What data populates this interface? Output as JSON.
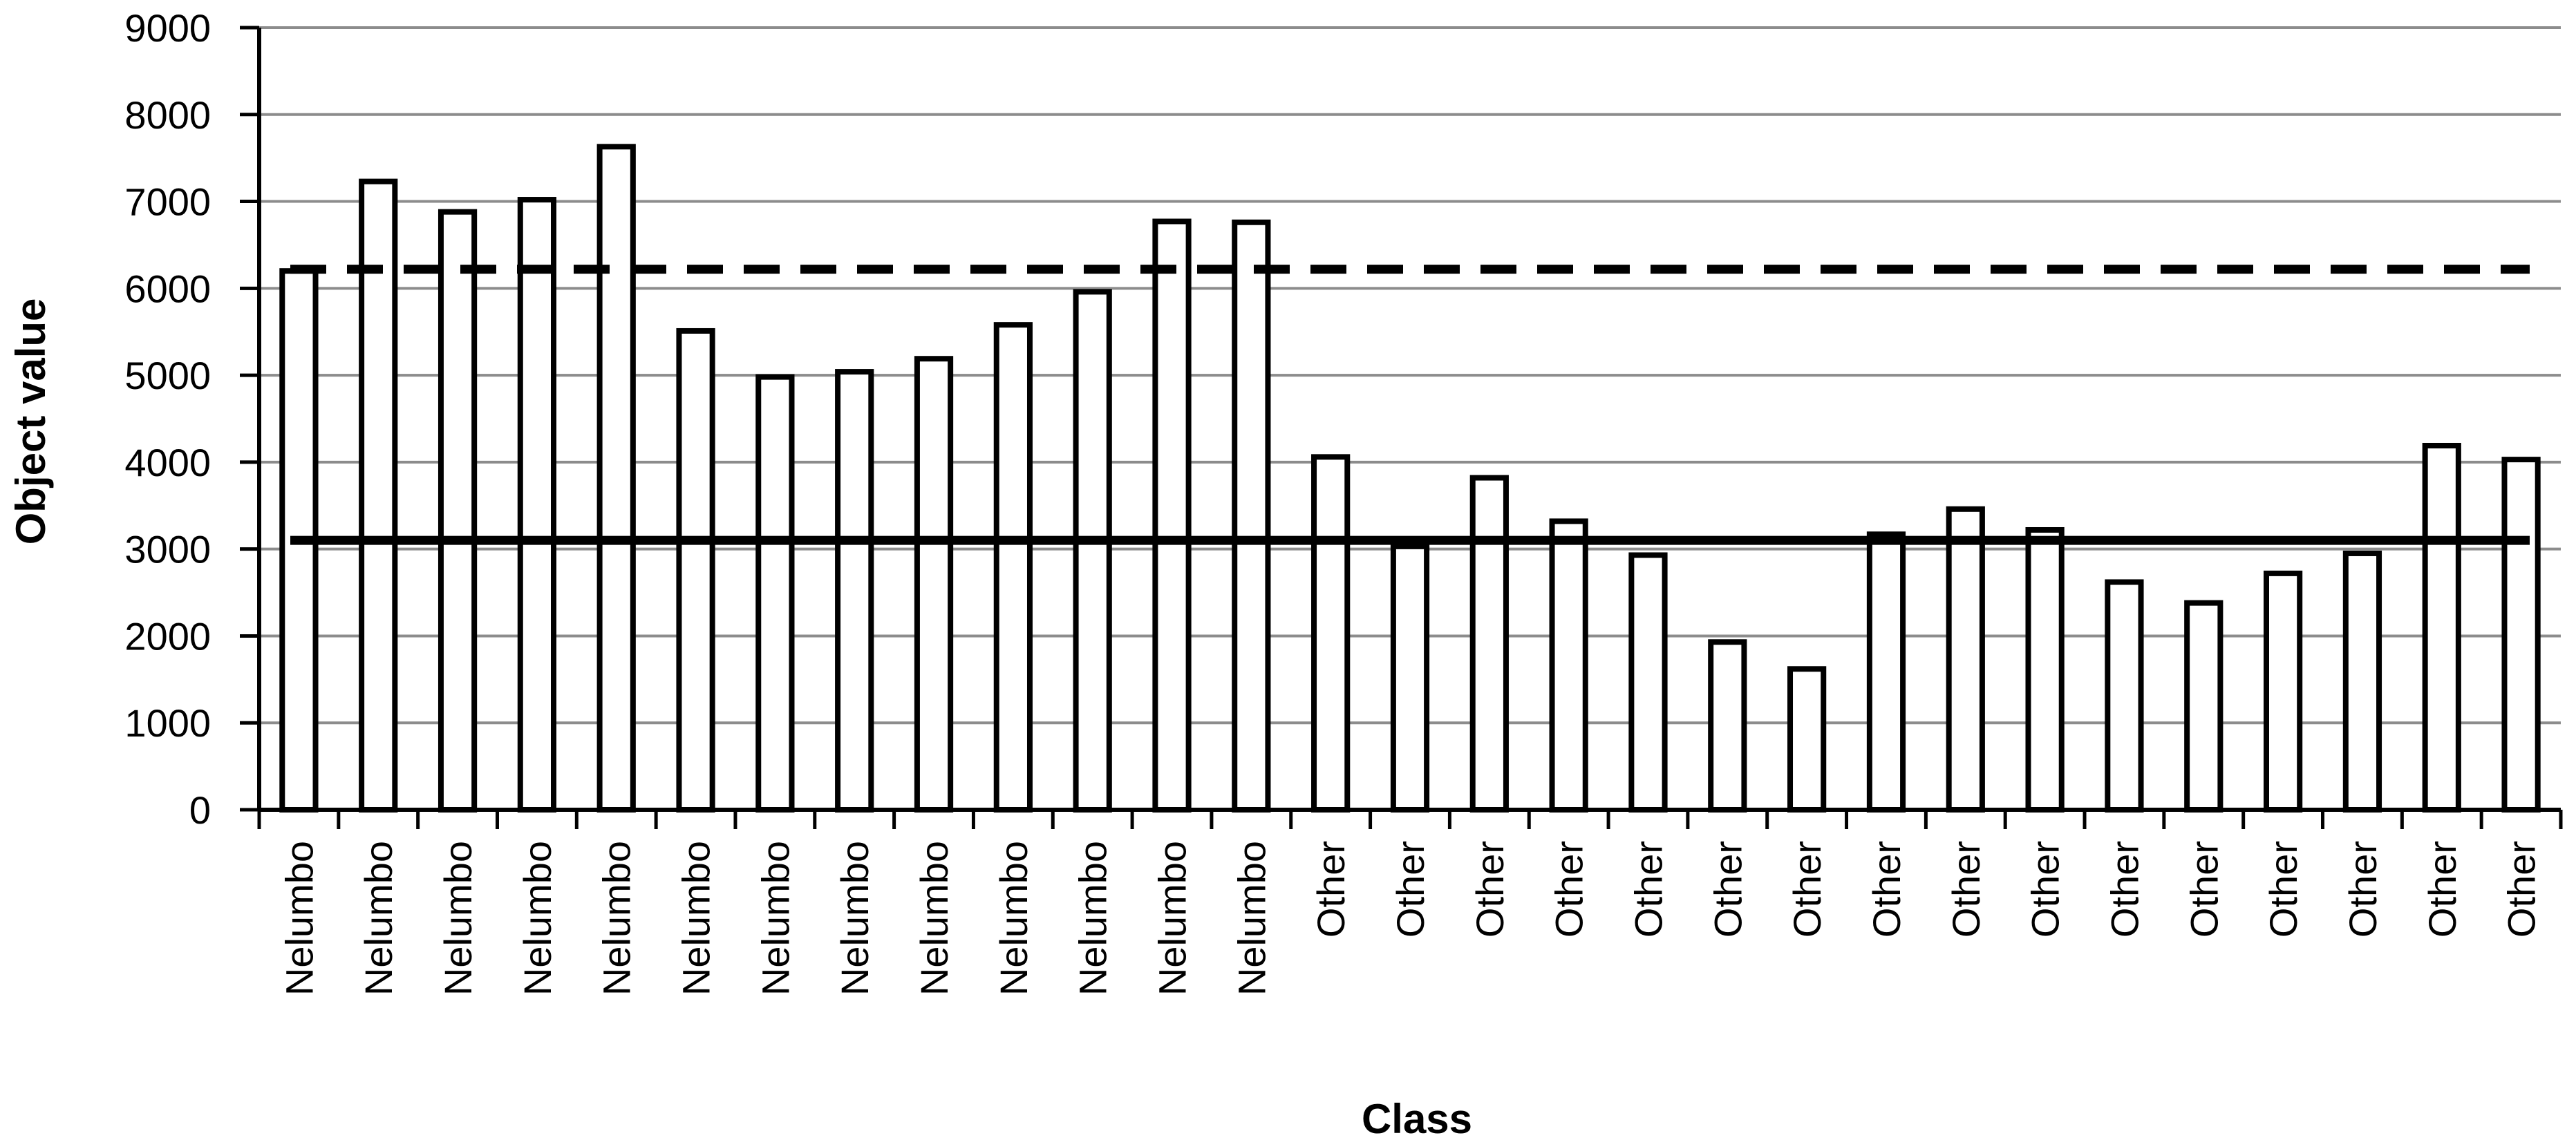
{
  "chart_data": {
    "type": "bar",
    "title": "",
    "xlabel": "Class",
    "ylabel": "Object value",
    "ylim": [
      0,
      9000
    ],
    "yticks": [
      0,
      1000,
      2000,
      3000,
      4000,
      5000,
      6000,
      7000,
      8000,
      9000
    ],
    "grid": true,
    "legend": "none",
    "categories": [
      "Nelumbo",
      "Nelumbo",
      "Nelumbo",
      "Nelumbo",
      "Nelumbo",
      "Nelumbo",
      "Nelumbo",
      "Nelumbo",
      "Nelumbo",
      "Nelumbo",
      "Nelumbo",
      "Nelumbo",
      "Nelumbo",
      "Other",
      "Other",
      "Other",
      "Other",
      "Other",
      "Other",
      "Other",
      "Other",
      "Other",
      "Other",
      "Other",
      "Other",
      "Other",
      "Other",
      "Other",
      "Other"
    ],
    "values": [
      6200,
      7230,
      6880,
      7020,
      7630,
      5510,
      4980,
      5040,
      5190,
      5580,
      5960,
      6770,
      6760,
      4060,
      3030,
      3820,
      3320,
      2930,
      1930,
      1620,
      3170,
      3460,
      3220,
      2620,
      2380,
      2720,
      2950,
      4190,
      4030
    ],
    "reference_lines": [
      {
        "y": 6220,
        "style": "dashed"
      },
      {
        "y": 3100,
        "style": "solid"
      }
    ],
    "colors": {
      "bar_fill": "#ffffff",
      "bar_stroke": "#000000",
      "grid": "#8c8c8c",
      "axis": "#000000"
    }
  }
}
